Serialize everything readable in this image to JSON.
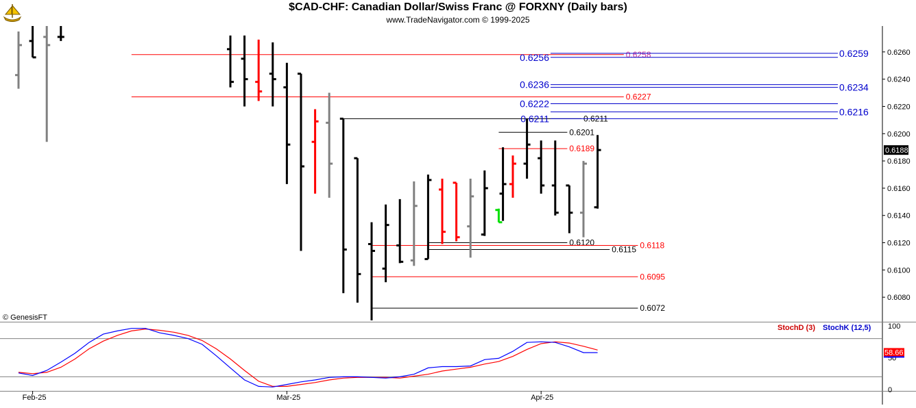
{
  "header": {
    "title": "$CAD-CHF:  Canadian Dollar/Swiss Franc @ FORXNY  (Daily bars)",
    "subtitle": "www.TradeNavigator.com © 1999-2025",
    "watermark": "© GenesisFT"
  },
  "chart_data": [
    {
      "type": "ohlc",
      "name": "price-panel",
      "title": "$CAD-CHF:  Canadian Dollar/Swiss Franc @ FORXNY  (Daily bars)",
      "ylim": [
        0.6062,
        0.6279
      ],
      "y_ticks": [
        "0.6260",
        "0.6240",
        "0.6220",
        "0.6200",
        "0.6180",
        "0.6160",
        "0.6140",
        "0.6120",
        "0.6100",
        "0.6080"
      ],
      "y_tick_values": [
        0.626,
        0.624,
        0.622,
        0.62,
        0.618,
        0.616,
        0.614,
        0.612,
        0.61,
        0.608
      ],
      "x_labels": [
        {
          "label": "Feb-25",
          "bar": 2
        },
        {
          "label": "Mar-25",
          "bar": 20
        },
        {
          "label": "Apr-25",
          "bar": 38
        }
      ],
      "last_price": {
        "label": "0.6188",
        "value": 0.6188
      },
      "bar_colors": {
        "black": "#000000",
        "red": "#ff0000",
        "gray": "#808080",
        "green": "#00e000"
      },
      "bars": [
        {
          "x": 1,
          "open": 0.6243,
          "high": 0.6275,
          "low": 0.6233,
          "close": 0.6265,
          "color": "gray"
        },
        {
          "x": 2,
          "open": 0.6268,
          "high": 0.6279,
          "low": 0.6256,
          "close": 0.6256,
          "color": "black"
        },
        {
          "x": 3,
          "open": 0.6271,
          "high": 0.6279,
          "low": 0.6194,
          "close": 0.6265,
          "color": "gray"
        },
        {
          "x": 4,
          "open": 0.6271,
          "high": 0.6279,
          "low": 0.6268,
          "close": 0.6271,
          "color": "black"
        },
        {
          "x": 16,
          "open": 0.6262,
          "high": 0.6272,
          "low": 0.6234,
          "close": 0.6238,
          "color": "black"
        },
        {
          "x": 17,
          "open": 0.6255,
          "high": 0.6272,
          "low": 0.622,
          "close": 0.624,
          "color": "black"
        },
        {
          "x": 18,
          "open": 0.6238,
          "high": 0.6269,
          "low": 0.6224,
          "close": 0.6231,
          "color": "red"
        },
        {
          "x": 19,
          "open": 0.6244,
          "high": 0.6267,
          "low": 0.622,
          "close": 0.624,
          "color": "black"
        },
        {
          "x": 20,
          "open": 0.6234,
          "high": 0.6252,
          "low": 0.6163,
          "close": 0.6192,
          "color": "black"
        },
        {
          "x": 21,
          "open": 0.6244,
          "high": 0.6244,
          "low": 0.6114,
          "close": 0.6176,
          "color": "black"
        },
        {
          "x": 22,
          "open": 0.6194,
          "high": 0.6218,
          "low": 0.6156,
          "close": 0.6209,
          "color": "red"
        },
        {
          "x": 23,
          "open": 0.6208,
          "high": 0.623,
          "low": 0.6153,
          "close": 0.6178,
          "color": "gray"
        },
        {
          "x": 24,
          "open": 0.6211,
          "high": 0.6211,
          "low": 0.6083,
          "close": 0.6115,
          "color": "black"
        },
        {
          "x": 25,
          "open": 0.6182,
          "high": 0.6182,
          "low": 0.6076,
          "close": 0.6097,
          "color": "black"
        },
        {
          "x": 26,
          "open": 0.6119,
          "high": 0.6135,
          "low": 0.6063,
          "close": 0.6114,
          "color": "black"
        },
        {
          "x": 27,
          "open": 0.6101,
          "high": 0.6148,
          "low": 0.6091,
          "close": 0.6133,
          "color": "black"
        },
        {
          "x": 28,
          "open": 0.6118,
          "high": 0.6152,
          "low": 0.6105,
          "close": 0.6106,
          "color": "black"
        },
        {
          "x": 29,
          "open": 0.6107,
          "high": 0.6165,
          "low": 0.6103,
          "close": 0.6147,
          "color": "gray"
        },
        {
          "x": 30,
          "open": 0.6108,
          "high": 0.617,
          "low": 0.6108,
          "close": 0.6166,
          "color": "black"
        },
        {
          "x": 31,
          "open": 0.6159,
          "high": 0.6167,
          "low": 0.6119,
          "close": 0.6128,
          "color": "red"
        },
        {
          "x": 32,
          "open": 0.6164,
          "high": 0.6164,
          "low": 0.6121,
          "close": 0.6124,
          "color": "red"
        },
        {
          "x": 33,
          "open": 0.6132,
          "high": 0.6167,
          "low": 0.6109,
          "close": 0.6154,
          "color": "gray"
        },
        {
          "x": 34,
          "open": 0.6126,
          "high": 0.6173,
          "low": 0.6125,
          "close": 0.616,
          "color": "black"
        },
        {
          "x": 35,
          "open": 0.6144,
          "high": 0.6145,
          "low": 0.6135,
          "close": 0.6135,
          "color": "green"
        },
        {
          "x": 35.3,
          "open": 0.6156,
          "high": 0.619,
          "low": 0.6136,
          "close": 0.6163,
          "color": "black"
        },
        {
          "x": 36,
          "open": 0.6163,
          "high": 0.6184,
          "low": 0.6153,
          "close": 0.6178,
          "color": "red"
        },
        {
          "x": 37,
          "open": 0.6178,
          "high": 0.6211,
          "low": 0.6167,
          "close": 0.6192,
          "color": "black"
        },
        {
          "x": 38,
          "open": 0.6182,
          "high": 0.6195,
          "low": 0.6156,
          "close": 0.6162,
          "color": "black"
        },
        {
          "x": 39,
          "open": 0.6162,
          "high": 0.6195,
          "low": 0.614,
          "close": 0.6142,
          "color": "black"
        },
        {
          "x": 40,
          "open": 0.6162,
          "high": 0.6162,
          "low": 0.6127,
          "close": 0.6142,
          "color": "black"
        },
        {
          "x": 41,
          "open": 0.6142,
          "high": 0.618,
          "low": 0.6124,
          "close": 0.6178,
          "color": "gray"
        },
        {
          "x": 42,
          "open": 0.6146,
          "high": 0.6199,
          "low": 0.6145,
          "close": 0.6188,
          "color": "black"
        }
      ],
      "levels": [
        {
          "value": 0.6258,
          "label": "0.6258",
          "x_from": 9,
          "label_at": 44,
          "color": "#ff0000",
          "label_color": "#cc3399"
        },
        {
          "value": 0.6227,
          "label": "0.6227",
          "x_from": 9,
          "label_at": 44,
          "color": "#ff0000",
          "label_color": "#ff0000"
        },
        {
          "value": 0.6211,
          "label": "0.6211",
          "x_from": 24,
          "label_at": 41,
          "color": "#000000",
          "label_color": "#000000"
        },
        {
          "value": 0.6201,
          "label": "0.6201",
          "x_from": 35,
          "label_at": 40,
          "color": "#000000",
          "label_color": "#000000"
        },
        {
          "value": 0.6189,
          "label": "0.6189",
          "x_from": 35,
          "label_at": 40,
          "color": "#ff0000",
          "label_color": "#ff0000"
        },
        {
          "value": 0.612,
          "label": "0.6120",
          "x_from": 30,
          "label_at": 40,
          "color": "#000000",
          "label_color": "#000000"
        },
        {
          "value": 0.6118,
          "label": "0.6118",
          "x_from": 26,
          "label_at": 45,
          "color": "#ff0000",
          "label_color": "#ff0000"
        },
        {
          "value": 0.6115,
          "label": "0.6115",
          "x_from": 30,
          "label_at": 43,
          "color": "#000000",
          "label_color": "#000000"
        },
        {
          "value": 0.6095,
          "label": "0.6095",
          "x_from": 26,
          "label_at": 45,
          "color": "#ff0000",
          "label_color": "#ff0000"
        },
        {
          "value": 0.6072,
          "label": "0.6072",
          "x_from": 26,
          "label_at": 45,
          "color": "#000000",
          "label_color": "#000000"
        }
      ],
      "blue_levels_left": [
        {
          "value": 0.6256,
          "label": "0.6256"
        },
        {
          "value": 0.6236,
          "label": "0.6236"
        },
        {
          "value": 0.6222,
          "label": "0.6222"
        },
        {
          "value": 0.6211,
          "label": "0.6211"
        }
      ],
      "blue_levels_right": [
        {
          "value": 0.6259,
          "label": "0.6259"
        },
        {
          "value": 0.6234,
          "label": "0.6234"
        },
        {
          "value": 0.6216,
          "label": "0.6216"
        }
      ],
      "blue_color": "#0000cc"
    },
    {
      "type": "line",
      "name": "stochastic-panel",
      "ylim": [
        0,
        100
      ],
      "y_ticks": [
        "100",
        "50",
        "0"
      ],
      "y_tick_values": [
        100,
        50,
        0
      ],
      "ref_lines": [
        80,
        20
      ],
      "last_value": {
        "label": "58.66",
        "value": 58.66
      },
      "legend": [
        {
          "label": "StochD (3)",
          "color": "#cc0000"
        },
        {
          "label": "StochK (12,5)",
          "color": "#0000cc"
        }
      ],
      "series": [
        {
          "name": "StochD (3)",
          "color": "#ff0000",
          "points": [
            [
              1,
              27
            ],
            [
              2,
              25
            ],
            [
              3,
              27
            ],
            [
              4,
              35
            ],
            [
              5,
              48
            ],
            [
              6,
              64
            ],
            [
              7,
              76
            ],
            [
              8,
              85
            ],
            [
              9,
              92
            ],
            [
              10,
              95
            ],
            [
              11,
              93
            ],
            [
              12,
              90
            ],
            [
              13,
              85
            ],
            [
              14,
              77
            ],
            [
              15,
              64
            ],
            [
              16,
              48
            ],
            [
              17,
              30
            ],
            [
              18,
              13
            ],
            [
              19,
              5
            ],
            [
              20,
              5
            ],
            [
              21,
              8
            ],
            [
              22,
              11
            ],
            [
              23,
              15
            ],
            [
              24,
              18
            ],
            [
              25,
              19
            ],
            [
              26,
              19
            ],
            [
              27,
              19
            ],
            [
              28,
              18
            ],
            [
              29,
              21
            ],
            [
              30,
              24
            ],
            [
              31,
              29
            ],
            [
              32,
              32
            ],
            [
              33,
              35
            ],
            [
              34,
              40
            ],
            [
              35,
              44
            ],
            [
              36,
              52
            ],
            [
              37,
              63
            ],
            [
              38,
              72
            ],
            [
              39,
              75
            ],
            [
              40,
              73
            ],
            [
              41,
              68
            ],
            [
              42,
              62
            ]
          ]
        },
        {
          "name": "StochK (12,5)",
          "color": "#0000ff",
          "points": [
            [
              1,
              26
            ],
            [
              2,
              22
            ],
            [
              3,
              30
            ],
            [
              4,
              43
            ],
            [
              5,
              57
            ],
            [
              6,
              74
            ],
            [
              7,
              87
            ],
            [
              8,
              92
            ],
            [
              9,
              96
            ],
            [
              10,
              96
            ],
            [
              11,
              89
            ],
            [
              12,
              85
            ],
            [
              13,
              80
            ],
            [
              14,
              71
            ],
            [
              15,
              53
            ],
            [
              16,
              34
            ],
            [
              17,
              15
            ],
            [
              18,
              5
            ],
            [
              19,
              4
            ],
            [
              20,
              8
            ],
            [
              21,
              12
            ],
            [
              22,
              15
            ],
            [
              23,
              19
            ],
            [
              24,
              20
            ],
            [
              25,
              20
            ],
            [
              26,
              19
            ],
            [
              27,
              18
            ],
            [
              28,
              20
            ],
            [
              29,
              24
            ],
            [
              30,
              34
            ],
            [
              31,
              36
            ],
            [
              32,
              36
            ],
            [
              33,
              37
            ],
            [
              34,
              47
            ],
            [
              35,
              49
            ],
            [
              36,
              60
            ],
            [
              37,
              74
            ],
            [
              38,
              75
            ],
            [
              39,
              74
            ],
            [
              40,
              67
            ],
            [
              41,
              58
            ],
            [
              42,
              58
            ]
          ]
        }
      ],
      "x_labels": [
        {
          "label": "Feb-25",
          "bar": 2
        },
        {
          "label": "Mar-25",
          "bar": 20
        },
        {
          "label": "Apr-25",
          "bar": 38
        }
      ]
    }
  ]
}
